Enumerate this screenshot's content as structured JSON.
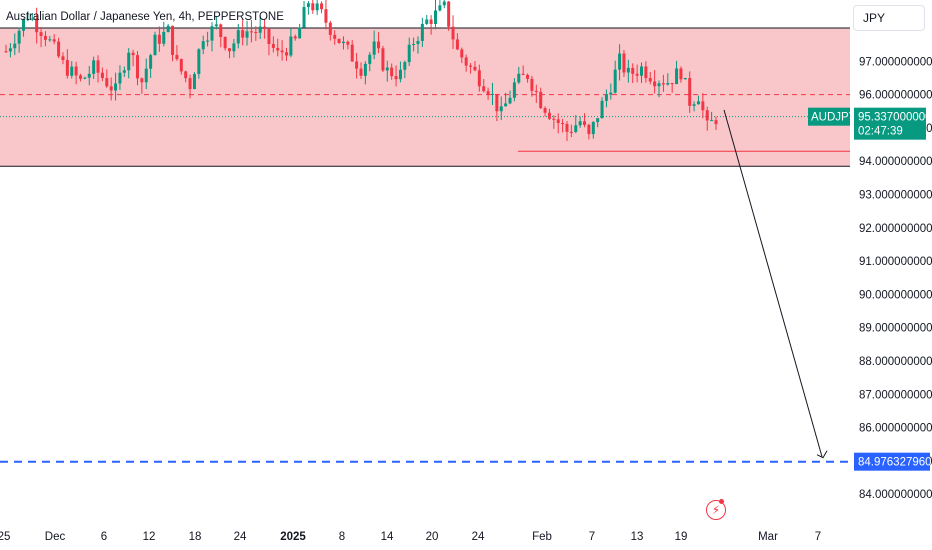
{
  "title": "Australian Dollar / Japanese Yen, 4h, PEPPERSTONE",
  "currency_button": "JPY",
  "colors": {
    "zone_fill": "#f9c6c9",
    "zone_border": "#131722",
    "up": "#089981",
    "down": "#f23645",
    "price_tag": "#089981",
    "target_line": "#2962ff",
    "support_line": "#f23645",
    "mid_dashed": "#f23645"
  },
  "price_axis": {
    "ticks": [
      "97.000000000",
      "96.000000000",
      "95.000000000",
      "94.000000000",
      "93.000000000",
      "92.000000000",
      "91.000000000",
      "90.000000000",
      "89.000000000",
      "88.000000000",
      "87.000000000",
      "86.000000000",
      "85.000000000",
      "84.000000000"
    ]
  },
  "time_axis": {
    "ticks": [
      "25",
      "Dec",
      "6",
      "12",
      "18",
      "24",
      "2025",
      "8",
      "14",
      "20",
      "24",
      "Feb",
      "7",
      "13",
      "19",
      "Mar",
      "7"
    ],
    "bold": [
      "2025"
    ]
  },
  "current_price": {
    "symbol": "AUDJPY",
    "price": "95.337000000",
    "countdown": "02:47:39"
  },
  "target_label": "84.976327960",
  "chart_data": {
    "type": "candlestick",
    "title": "Australian Dollar / Japanese Yen, 4h, PEPPERSTONE",
    "ylim": [
      83.8,
      98.2
    ],
    "zone": {
      "top": 98.0,
      "bottom": 93.85,
      "mid_dashed": 96.0
    },
    "support_level": 94.3,
    "current_price": 95.337,
    "projection": {
      "from": 95.3,
      "to": 84.976,
      "target_level": 84.97632796
    },
    "path": [
      {
        "i": 0,
        "p": 97.3
      },
      {
        "i": 5,
        "p": 98.4
      },
      {
        "i": 9,
        "p": 97.8
      },
      {
        "i": 13,
        "p": 96.9
      },
      {
        "i": 17,
        "p": 96.4
      },
      {
        "i": 20,
        "p": 96.8
      },
      {
        "i": 25,
        "p": 96.1
      },
      {
        "i": 28,
        "p": 97.4
      },
      {
        "i": 31,
        "p": 96.4
      },
      {
        "i": 34,
        "p": 97.6
      },
      {
        "i": 37,
        "p": 97.9
      },
      {
        "i": 39,
        "p": 96.9
      },
      {
        "i": 42,
        "p": 96.3
      },
      {
        "i": 45,
        "p": 97.8
      },
      {
        "i": 48,
        "p": 98.0
      },
      {
        "i": 51,
        "p": 97.4
      },
      {
        "i": 54,
        "p": 97.9
      },
      {
        "i": 58,
        "p": 97.9
      },
      {
        "i": 62,
        "p": 97.2
      },
      {
        "i": 66,
        "p": 97.6
      },
      {
        "i": 69,
        "p": 98.8
      },
      {
        "i": 72,
        "p": 98.4
      },
      {
        "i": 75,
        "p": 97.8
      },
      {
        "i": 78,
        "p": 97.3
      },
      {
        "i": 81,
        "p": 96.8
      },
      {
        "i": 84,
        "p": 97.4
      },
      {
        "i": 87,
        "p": 96.7
      },
      {
        "i": 90,
        "p": 96.6
      },
      {
        "i": 93,
        "p": 97.6
      },
      {
        "i": 96,
        "p": 98.2
      },
      {
        "i": 100,
        "p": 98.6
      },
      {
        "i": 103,
        "p": 97.3
      },
      {
        "i": 106,
        "p": 96.8
      },
      {
        "i": 110,
        "p": 96.2
      },
      {
        "i": 113,
        "p": 95.4
      },
      {
        "i": 116,
        "p": 96.3
      },
      {
        "i": 119,
        "p": 96.6
      },
      {
        "i": 122,
        "p": 95.8
      },
      {
        "i": 125,
        "p": 95.3
      },
      {
        "i": 128,
        "p": 94.9
      },
      {
        "i": 131,
        "p": 95.2
      },
      {
        "i": 133,
        "p": 94.7
      },
      {
        "i": 135,
        "p": 95.4
      },
      {
        "i": 138,
        "p": 96.3
      },
      {
        "i": 140,
        "p": 97.0
      },
      {
        "i": 142,
        "p": 96.6
      },
      {
        "i": 145,
        "p": 96.8
      },
      {
        "i": 148,
        "p": 96.5
      },
      {
        "i": 151,
        "p": 96.4
      },
      {
        "i": 154,
        "p": 96.7
      },
      {
        "i": 156,
        "p": 95.8
      },
      {
        "i": 158,
        "p": 96.0
      },
      {
        "i": 160,
        "p": 95.0
      },
      {
        "i": 162,
        "p": 95.3
      }
    ],
    "seed": 7
  }
}
